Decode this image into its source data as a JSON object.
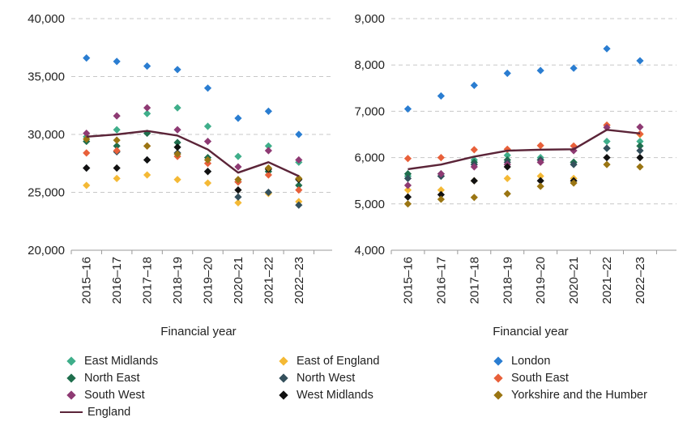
{
  "chart_data": [
    {
      "type": "scatter",
      "title": "",
      "xlabel": "Financial year",
      "ylabel": "",
      "ylim": [
        20000,
        40000
      ],
      "yticks": [
        "20,000",
        "25,000",
        "30,000",
        "35,000",
        "40,000"
      ],
      "categories": [
        "2015–16",
        "2016–17",
        "2017–18",
        "2018–19",
        "2019–20",
        "2020–21",
        "2021–22",
        "2022–23"
      ],
      "series": [
        {
          "name": "East Midlands",
          "values": [
            29800,
            30400,
            31800,
            32300,
            30700,
            28100,
            29000,
            27600
          ]
        },
        {
          "name": "East of England",
          "values": [
            25600,
            26200,
            26500,
            26100,
            25800,
            24100,
            24900,
            24200
          ]
        },
        {
          "name": "London",
          "values": [
            36600,
            36300,
            35900,
            35600,
            34000,
            31400,
            32000,
            30000
          ]
        },
        {
          "name": "North East",
          "values": [
            29400,
            29000,
            30100,
            29300,
            28000,
            25900,
            26800,
            25600
          ]
        },
        {
          "name": "North West",
          "values": [
            27100,
            28500,
            27800,
            28400,
            26800,
            24600,
            25000,
            23900
          ]
        },
        {
          "name": "South East",
          "values": [
            28400,
            28600,
            29000,
            28100,
            27500,
            25900,
            26500,
            25200
          ]
        },
        {
          "name": "South West",
          "values": [
            30100,
            31600,
            32300,
            30400,
            29400,
            27200,
            28600,
            27800
          ]
        },
        {
          "name": "West Midlands",
          "values": [
            27100,
            27100,
            27800,
            28900,
            26800,
            25200,
            27000,
            26100
          ]
        },
        {
          "name": "Yorkshire and the Humber",
          "values": [
            29600,
            29500,
            29000,
            28300,
            27800,
            26100,
            27100,
            26200
          ]
        }
      ],
      "line_series": {
        "name": "England",
        "values": [
          29800,
          30000,
          30300,
          29900,
          28700,
          26700,
          27600,
          26400
        ]
      }
    },
    {
      "type": "scatter",
      "title": "",
      "xlabel": "Financial year",
      "ylabel": "",
      "ylim": [
        4000,
        9000
      ],
      "yticks": [
        "4,000",
        "5,000",
        "6,000",
        "7,000",
        "8,000",
        "9,000"
      ],
      "categories": [
        "2015–16",
        "2016–17",
        "2017–18",
        "2018–19",
        "2019–20",
        "2020–21",
        "2021–22",
        "2022–23"
      ],
      "series": [
        {
          "name": "East Midlands",
          "values": [
            5600,
            5650,
            5950,
            6050,
            6000,
            5900,
            6350,
            6350
          ]
        },
        {
          "name": "East of England",
          "values": [
            5300,
            5300,
            5500,
            5550,
            5600,
            5550,
            6700,
            6500
          ]
        },
        {
          "name": "London",
          "values": [
            7050,
            7330,
            7560,
            7820,
            7880,
            7930,
            8350,
            8090
          ]
        },
        {
          "name": "North East",
          "values": [
            5650,
            5600,
            5900,
            5950,
            5950,
            5900,
            6200,
            6250
          ]
        },
        {
          "name": "North West",
          "values": [
            5550,
            5600,
            5850,
            5900,
            5950,
            5850,
            6200,
            6150
          ]
        },
        {
          "name": "South East",
          "values": [
            5980,
            6000,
            6170,
            6180,
            6260,
            6250,
            6700,
            6510
          ]
        },
        {
          "name": "South West",
          "values": [
            5400,
            5650,
            5800,
            5850,
            5900,
            6150,
            6650,
            6660
          ]
        },
        {
          "name": "West Midlands",
          "values": [
            5150,
            5200,
            5500,
            5800,
            5500,
            5500,
            6000,
            6000
          ]
        },
        {
          "name": "Yorkshire and the Humber",
          "values": [
            5000,
            5100,
            5140,
            5220,
            5380,
            5450,
            5850,
            5800
          ]
        }
      ],
      "line_series": {
        "name": "England",
        "values": [
          5750,
          5850,
          6020,
          6150,
          6170,
          6180,
          6600,
          6520
        ]
      }
    }
  ],
  "colors": {
    "East Midlands": "#3fae8a",
    "East of England": "#f4b935",
    "London": "#2a7dd1",
    "North East": "#1f6e4d",
    "North West": "#34505c",
    "South East": "#e8603a",
    "South West": "#8e3a73",
    "West Midlands": "#111111",
    "Yorkshire and the Humber": "#9a7513",
    "England": "#5b2438",
    "grid": "#c8c8c8",
    "axis": "#999999"
  },
  "legend": {
    "items": [
      {
        "label": "East Midlands",
        "icon": "diamond"
      },
      {
        "label": "East of England",
        "icon": "diamond"
      },
      {
        "label": "London",
        "icon": "diamond"
      },
      {
        "label": "North East",
        "icon": "diamond"
      },
      {
        "label": "North West",
        "icon": "diamond"
      },
      {
        "label": "South East",
        "icon": "diamond"
      },
      {
        "label": "South West",
        "icon": "diamond"
      },
      {
        "label": "West Midlands",
        "icon": "diamond"
      },
      {
        "label": "Yorkshire and the Humber",
        "icon": "diamond"
      },
      {
        "label": "England",
        "icon": "line"
      }
    ]
  }
}
